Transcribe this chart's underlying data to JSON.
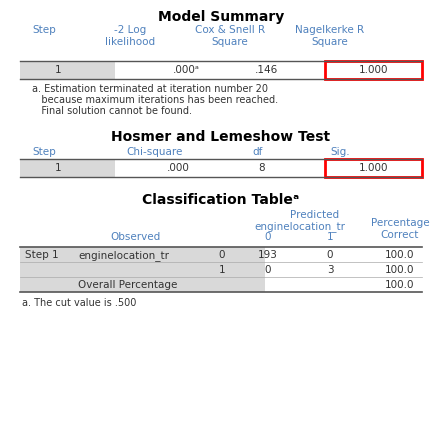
{
  "bg_color": "#ffffff",
  "title_color": "#000000",
  "blue": "#4f81bd",
  "dark": "#333333",
  "gray_bg": "#d9d9d9",
  "red": "#ff0000",
  "ms_title": "Model Summary",
  "ms_col_headers": [
    "Step",
    "-2 Log\nlikelihood",
    "Cox & Snell R\nSquare",
    "Nagelkerke R\nSquare"
  ],
  "ms_row": [
    "1",
    ".000ᵃ",
    ".146",
    "1.000"
  ],
  "ms_note_lines": [
    "a. Estimation terminated at iteration number 20",
    "   because maximum iterations has been reached.",
    "   Final solution cannot be found."
  ],
  "hl_title": "Hosmer and Lemeshow Test",
  "hl_col_headers": [
    "Step",
    "Chi-square",
    "df",
    "Sig."
  ],
  "hl_row": [
    "1",
    ".000",
    "8",
    "1.000"
  ],
  "ct_title": "Classification Tableᵃ",
  "ct_predicted": "Predicted",
  "ct_engline_tr": "enginelocation_tr",
  "ct_observed": "Observed",
  "ct_pct_correct": "Percentage\nCorrect",
  "ct_pred_0": "0",
  "ct_pred_1": "1",
  "ct_data_rows": [
    [
      "Step 1",
      "enginelocation_tr",
      "0",
      "193",
      "0",
      "100.0"
    ],
    [
      "",
      "",
      "1",
      "0",
      "3",
      "100.0"
    ],
    [
      "",
      "Overall Percentage",
      "",
      "",
      "",
      "100.0"
    ]
  ],
  "ct_note": "a. The cut value is .500",
  "fig_w": 4.42,
  "fig_h": 4.39,
  "dpi": 100
}
